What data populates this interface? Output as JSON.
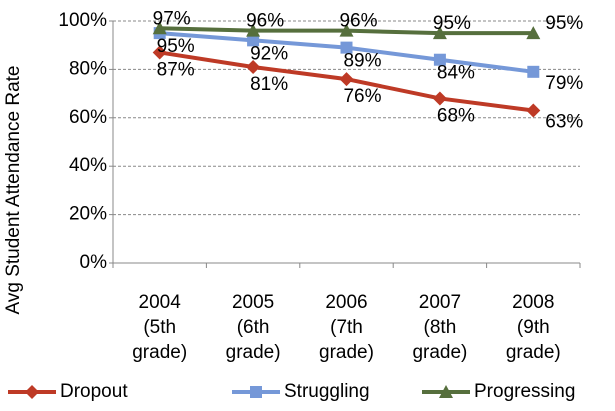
{
  "chart_data": {
    "type": "line",
    "y_label": "Avg Student Attendance Rate",
    "categories": [
      "2004 (5th grade)",
      "2005 (6th grade)",
      "2006 (7th grade)",
      "2007 (8th grade)",
      "2008 (9th grade)"
    ],
    "series": [
      {
        "name": "Dropout",
        "color": "#be3a26",
        "marker": "diamond",
        "values": [
          87,
          81,
          76,
          68,
          63
        ],
        "value_labels": [
          "87%",
          "81%",
          "76%",
          "68%",
          "63%"
        ]
      },
      {
        "name": "Struggling",
        "color": "#7598d8",
        "marker": "square",
        "values": [
          95,
          92,
          89,
          84,
          79
        ],
        "value_labels": [
          "95%",
          "92%",
          "89%",
          "84%",
          "79%"
        ]
      },
      {
        "name": "Progressing",
        "color": "#566f3d",
        "marker": "triangle",
        "values": [
          97,
          96,
          96,
          95,
          95
        ],
        "value_labels": [
          "97%",
          "96%",
          "96%",
          "95%",
          "95%"
        ]
      }
    ],
    "ylim": [
      0,
      100
    ],
    "yticks": [
      {
        "value": 0,
        "label": "0%"
      },
      {
        "value": 20,
        "label": "20%"
      },
      {
        "value": 40,
        "label": "40%"
      },
      {
        "value": 60,
        "label": "60%"
      },
      {
        "value": 80,
        "label": "80%"
      },
      {
        "value": 100,
        "label": "100%"
      }
    ],
    "grid": true,
    "legend": "bottom"
  }
}
